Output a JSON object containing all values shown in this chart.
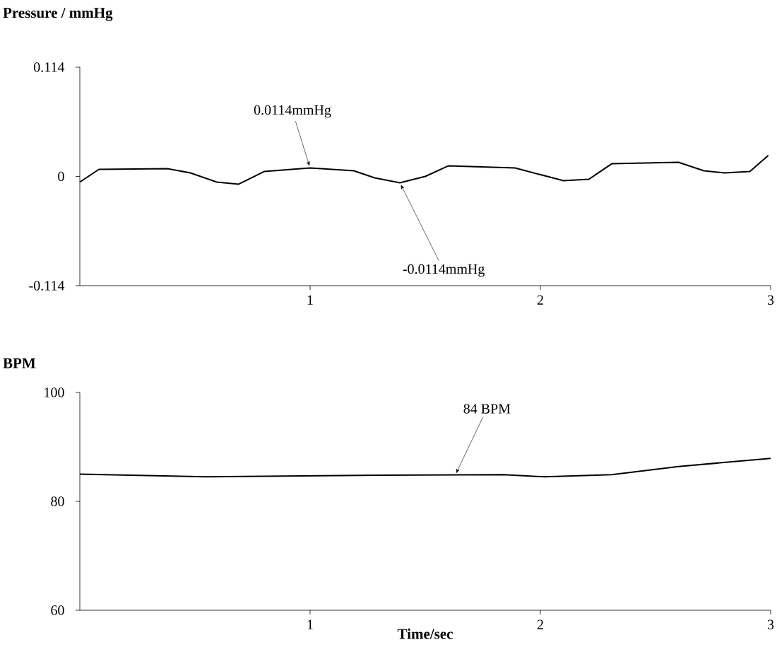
{
  "chart_data": [
    {
      "type": "line",
      "ylabel": "Pressure / mmHg",
      "color": "#000000",
      "x": [
        0,
        0.083,
        0.38,
        0.48,
        0.595,
        0.69,
        0.8,
        1.0,
        1.19,
        1.28,
        1.39,
        1.5,
        1.6,
        1.89,
        2.1,
        2.21,
        2.31,
        2.6,
        2.71,
        2.8,
        2.91,
        2.99
      ],
      "values": [
        -0.0059,
        0.0074,
        0.0081,
        0.0037,
        -0.0059,
        -0.0081,
        0.0051,
        0.0088,
        0.0059,
        -0.0015,
        -0.0066,
        0.0,
        0.011,
        0.0088,
        -0.0044,
        -0.003,
        0.0132,
        0.0147,
        0.0059,
        0.0037,
        0.0051,
        0.022
      ],
      "xlim": [
        0,
        3
      ],
      "xticks": [
        1,
        2,
        3
      ],
      "ylim": [
        -0.114,
        0.114
      ],
      "yticks": [
        -0.114,
        0,
        0.114
      ],
      "annotations": [
        {
          "text": "0.0114mmHg",
          "x": 1.0,
          "y": 0.0088
        },
        {
          "text": "-0.0114mmHg",
          "x": 1.39,
          "y": -0.0066
        }
      ]
    },
    {
      "type": "line",
      "ylabel": "BPM",
      "xlabel": "Time/sec",
      "color": "#000000",
      "x": [
        0,
        0.55,
        1.3,
        1.84,
        2.02,
        2.31,
        2.6,
        3.0
      ],
      "values": [
        85.0,
        84.5,
        84.8,
        84.9,
        84.5,
        84.9,
        86.4,
        87.9
      ],
      "xlim": [
        0,
        3
      ],
      "xticks": [
        1,
        2,
        3
      ],
      "ylim": [
        60,
        100
      ],
      "yticks": [
        60,
        80,
        100
      ],
      "annotations": [
        {
          "text": "84 BPM",
          "x": 1.63,
          "y": 84.8
        }
      ]
    }
  ]
}
